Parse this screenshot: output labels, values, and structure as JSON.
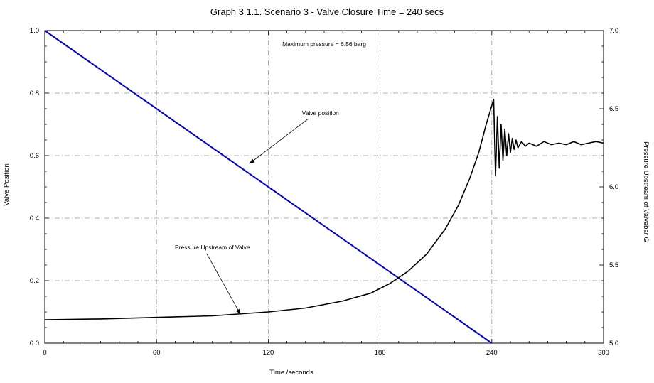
{
  "chart_data": {
    "type": "line",
    "title": "Graph 3.1.1.  Scenario 3 - Valve Closure Time = 240 secs",
    "xlabel": "Time /seconds",
    "ylabel": "Valve Position",
    "y2label": "Pressure Upstream of Valvebar G",
    "xlim": [
      0,
      300
    ],
    "ylim": [
      0,
      1.0
    ],
    "y2lim": [
      5.0,
      7.0
    ],
    "x_ticks": [
      "0",
      "60",
      "120",
      "180",
      "240",
      "300"
    ],
    "y_ticks": [
      "0.0",
      "0.2",
      "0.4",
      "0.6",
      "0.8",
      "1.0"
    ],
    "y2_ticks": [
      "5.0",
      "5.5",
      "6.0",
      "6.5",
      "7.0"
    ],
    "grid": true,
    "colors": {
      "valve": "#0000cc",
      "pressure": "#000000",
      "grid": "#9a9a9a"
    },
    "series": [
      {
        "name": "Valve position",
        "axis": "left",
        "x": [
          0,
          240
        ],
        "y": [
          1.0,
          0.0
        ]
      },
      {
        "name": "Pressure Upstream of Valve",
        "axis": "right",
        "x": [
          0,
          30,
          60,
          90,
          120,
          140,
          160,
          175,
          185,
          195,
          205,
          215,
          222,
          228,
          233,
          237,
          240,
          241,
          242,
          243,
          244,
          245,
          246,
          247,
          248,
          249,
          250,
          251,
          252,
          253,
          254,
          256,
          258,
          260,
          264,
          268,
          272,
          276,
          280,
          284,
          288,
          292,
          296,
          300
        ],
        "y": [
          5.15,
          5.155,
          5.165,
          5.175,
          5.2,
          5.225,
          5.27,
          5.32,
          5.38,
          5.46,
          5.57,
          5.73,
          5.88,
          6.05,
          6.22,
          6.4,
          6.52,
          6.56,
          6.07,
          6.45,
          6.12,
          6.4,
          6.17,
          6.37,
          6.2,
          6.34,
          6.22,
          6.31,
          6.24,
          6.3,
          6.25,
          6.29,
          6.26,
          6.28,
          6.26,
          6.29,
          6.27,
          6.28,
          6.27,
          6.29,
          6.27,
          6.28,
          6.29,
          6.28
        ]
      }
    ],
    "annotations": [
      {
        "text": "Maximum pressure = 6.56 barg",
        "x": 150,
        "y": 0.95
      },
      {
        "text": "Valve position",
        "x": 148,
        "y": 0.73,
        "arrow_to": [
          110,
          0.575
        ]
      },
      {
        "text": "Pressure Upstream of Valve",
        "x": 90,
        "y": 0.3,
        "arrow_to": [
          105,
          0.093
        ]
      }
    ]
  }
}
